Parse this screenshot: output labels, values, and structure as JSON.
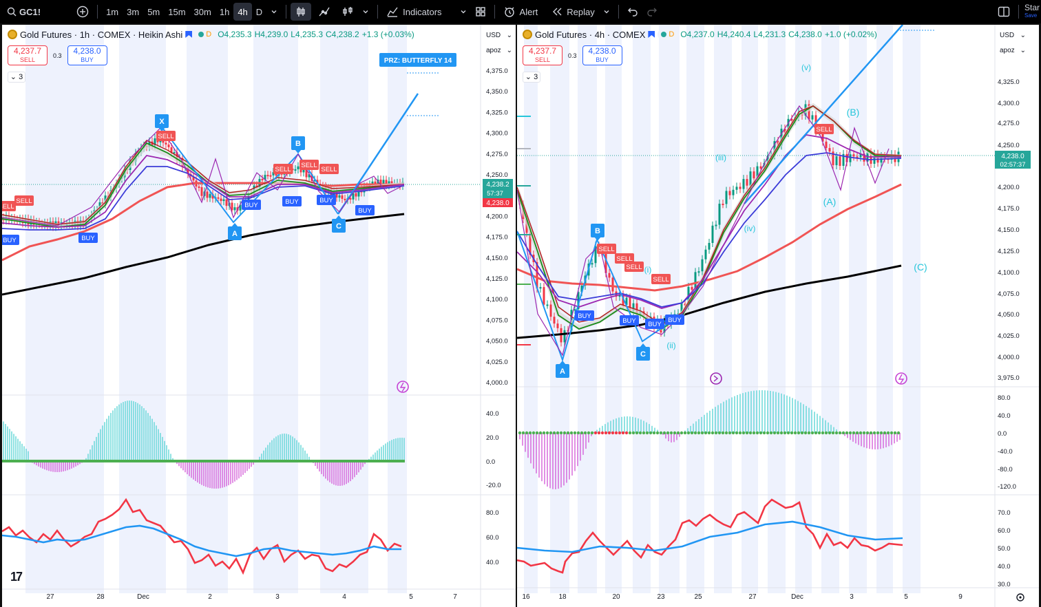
{
  "toolbar": {
    "symbol": "GC1!",
    "intervals": [
      "1m",
      "3m",
      "5m",
      "15m",
      "30m",
      "1h",
      "4h",
      "D"
    ],
    "active_interval": "4h",
    "indicators_label": "Indicators",
    "alert_label": "Alert",
    "replay_label": "Replay",
    "right_label": "Star",
    "right_sub": "Save"
  },
  "left": {
    "title": "Gold Futures · 1h · COMEX · Heikin Ashi",
    "d_label": "D",
    "ohlc": {
      "o": "O4,235.3",
      "h": "H4,239.0",
      "l": "L4,235.3",
      "c": "C4,238.2",
      "chg": "+1.3 (+0.03%)"
    },
    "sell_price": "4,237.7",
    "sell_label": "SELL",
    "spread": "0.3",
    "buy_price": "4,238.0",
    "buy_label": "BUY",
    "collapse_count": "3",
    "currency": "USD",
    "scale": "apoz",
    "price_ticks": [
      "4,375.0",
      "4,350.0",
      "4,325.0",
      "4,300.0",
      "4,275.0",
      "4,250.0",
      "4,225.0",
      "4,200.0",
      "4,175.0",
      "4,150.0",
      "4,125.0",
      "4,100.0",
      "4,075.0",
      "4,050.0",
      "4,025.0",
      "4,000.0"
    ],
    "macd_ticks": [
      "40.0",
      "20.0",
      "0.0",
      "-20.0"
    ],
    "rsi_ticks": [
      "80.0",
      "60.0",
      "40.0"
    ],
    "time_labels": [
      "27",
      "28",
      "Dec",
      "2",
      "3",
      "4",
      "5",
      "7"
    ],
    "price_tag": "4,238.2",
    "countdown": "57:37",
    "red_tag": "4,238.0",
    "prz_label": "PRZ: BUTTERFLY 14",
    "pattern_labels": [
      "X",
      "A",
      "B",
      "C"
    ],
    "signals": [
      "SELL",
      "SELL",
      "SELL",
      "SELL",
      "SELL",
      "SELL",
      "BUY",
      "BUY",
      "BUY",
      "BUY",
      "BUY",
      "BUY"
    ]
  },
  "right": {
    "title": "Gold Futures · 4h · COMEX",
    "d_label": "D",
    "ohlc": {
      "o": "O4,237.0",
      "h": "H4,240.4",
      "l": "L4,231.3",
      "c": "C4,238.0",
      "chg": "+1.0 (+0.02%)"
    },
    "sell_price": "4,237.7",
    "sell_label": "SELL",
    "spread": "0.3",
    "buy_price": "4,238.0",
    "buy_label": "BUY",
    "collapse_count": "3",
    "currency": "USD",
    "scale": "apoz",
    "price_ticks": [
      "4,325.0",
      "4,300.0",
      "4,275.0",
      "4,250.0",
      "4,200.0",
      "4,175.0",
      "4,150.0",
      "4,125.0",
      "4,100.0",
      "4,075.0",
      "4,050.0",
      "4,025.0",
      "4,000.0",
      "3,975.0"
    ],
    "macd_ticks": [
      "80.0",
      "40.0",
      "0.0",
      "-40.0",
      "-80.0",
      "-120.0"
    ],
    "rsi_ticks": [
      "70.0",
      "60.0",
      "50.0",
      "40.0",
      "30.0"
    ],
    "time_labels": [
      "16",
      "18",
      "20",
      "23",
      "25",
      "27",
      "Dec",
      "3",
      "5",
      "9"
    ],
    "price_tag": "4,238.0",
    "countdown": "02:57:37",
    "pattern_labels": [
      "A",
      "B",
      "C"
    ],
    "wave_labels": [
      "(v)",
      "(B)",
      "(iii)",
      "(iv)",
      "(A)",
      "(C)",
      "(i)",
      "(ii)"
    ],
    "signals": [
      "SELL",
      "SELL",
      "SELL",
      "SELL",
      "SELL",
      "BUY",
      "BUY",
      "BUY",
      "BUY"
    ]
  }
}
